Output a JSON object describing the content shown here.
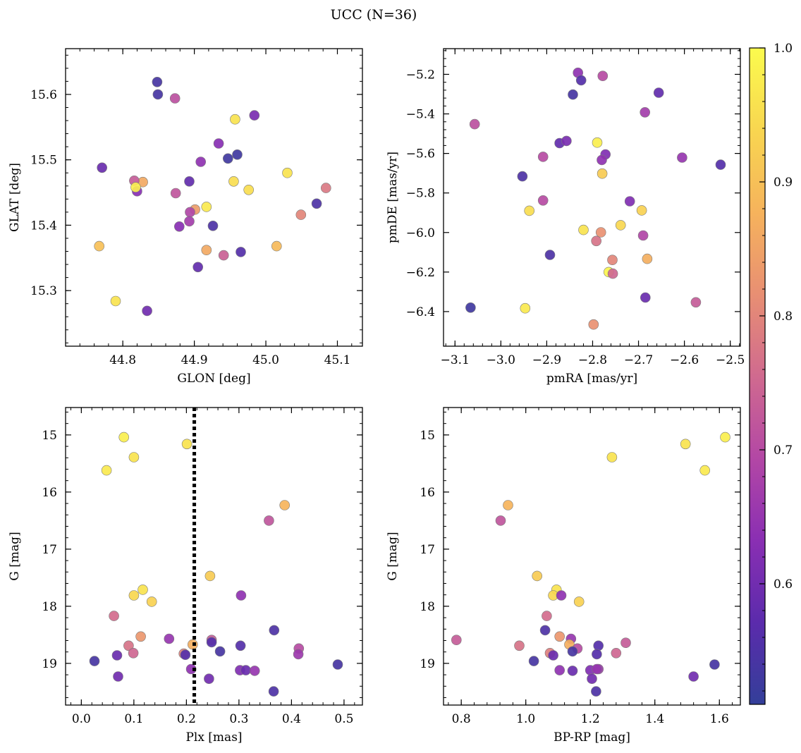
{
  "title": "UCC (N=36)",
  "colorbar": {
    "min": 0.51,
    "max": 1.0,
    "ticks": [
      0.6,
      0.7,
      0.8,
      0.9,
      1.0
    ],
    "tick_labels": [
      "0.6",
      "0.7",
      "0.8",
      "0.9",
      "1.0"
    ],
    "colormap": "plasma",
    "colors": [
      "#333f99",
      "#5b2bac",
      "#8a2fb3",
      "#b347a5",
      "#d06a8f",
      "#e88f73",
      "#f6b35c",
      "#f8d650",
      "#fbfb4e"
    ]
  },
  "chart_data": [
    {
      "type": "scatter",
      "id": "sky",
      "xlabel": "GLON [deg]",
      "ylabel": "GLAT [deg]",
      "xlim": [
        44.72,
        45.135
      ],
      "ylim": [
        15.215,
        15.67
      ],
      "xticks": [
        44.8,
        44.9,
        45.0,
        45.1
      ],
      "xtick_labels": [
        "44.8",
        "44.9",
        "45.0",
        "45.1"
      ],
      "yticks": [
        15.3,
        15.4,
        15.5,
        15.6
      ],
      "ytick_labels": [
        "15.3",
        "15.4",
        "15.5",
        "15.6"
      ],
      "x": [
        44.848,
        44.849,
        44.873,
        44.984,
        44.957,
        44.771,
        44.934,
        44.96,
        44.947,
        44.909,
        44.955,
        44.828,
        44.82,
        44.816,
        44.893,
        45.03,
        44.976,
        45.084,
        44.874,
        44.818,
        44.917,
        45.071,
        44.901,
        44.894,
        45.049,
        44.893,
        44.879,
        44.926,
        44.767,
        45.015,
        44.917,
        44.965,
        44.941,
        44.905,
        44.79,
        44.834
      ],
      "y": [
        15.619,
        15.6,
        15.594,
        15.568,
        15.562,
        15.488,
        15.525,
        15.508,
        15.502,
        15.497,
        15.467,
        15.466,
        15.452,
        15.468,
        15.467,
        15.48,
        15.454,
        15.457,
        15.449,
        15.458,
        15.428,
        15.433,
        15.424,
        15.42,
        15.416,
        15.406,
        15.398,
        15.399,
        15.368,
        15.368,
        15.362,
        15.359,
        15.354,
        15.336,
        15.284,
        15.269
      ],
      "c": [
        0.54,
        0.54,
        0.71,
        0.61,
        0.96,
        0.59,
        0.63,
        0.53,
        0.53,
        0.64,
        0.95,
        0.86,
        0.63,
        0.73,
        0.58,
        0.96,
        0.95,
        0.78,
        0.72,
        0.98,
        0.97,
        0.55,
        0.84,
        0.69,
        0.8,
        0.67,
        0.63,
        0.55,
        0.9,
        0.89,
        0.86,
        0.56,
        0.74,
        0.58,
        0.96,
        0.6
      ]
    },
    {
      "type": "scatter",
      "id": "pm",
      "xlabel": "pmRA [mas/yr]",
      "ylabel": "pmDE [mas/yr]",
      "xlim": [
        -3.125,
        -2.478
      ],
      "ylim": [
        -6.575,
        -5.07
      ],
      "xticks": [
        -3.1,
        -3.0,
        -2.9,
        -2.8,
        -2.7,
        -2.6,
        -2.5
      ],
      "xtick_labels": [
        "−3.1",
        "−3.0",
        "−2.9",
        "−2.8",
        "−2.7",
        "−2.6",
        "−2.5"
      ],
      "yticks": [
        -5.2,
        -5.4,
        -5.6,
        -5.8,
        -6.0,
        -6.2,
        -6.4
      ],
      "ytick_labels": [
        "−5.2",
        "−5.4",
        "−5.6",
        "−5.8",
        "−6.0",
        "−6.2",
        "−6.4"
      ],
      "x": [
        -2.832,
        -2.778,
        -2.825,
        -2.843,
        -2.656,
        -3.057,
        -2.686,
        -2.872,
        -2.857,
        -2.79,
        -2.772,
        -2.78,
        -2.908,
        -2.779,
        -2.953,
        -2.605,
        -2.521,
        -2.719,
        -2.908,
        -2.938,
        -2.693,
        -2.82,
        -2.739,
        -2.782,
        -2.69,
        -2.792,
        -2.757,
        -2.681,
        -2.765,
        -2.756,
        -2.893,
        -2.685,
        -2.575,
        -3.066,
        -2.947,
        -2.798
      ],
      "y": [
        -5.192,
        -5.208,
        -5.23,
        -5.302,
        -5.293,
        -5.452,
        -5.392,
        -5.548,
        -5.537,
        -5.545,
        -5.605,
        -5.633,
        -5.617,
        -5.702,
        -5.716,
        -5.621,
        -5.657,
        -5.842,
        -5.838,
        -5.89,
        -5.888,
        -5.987,
        -5.963,
        -5.999,
        -6.015,
        -6.043,
        -6.139,
        -6.133,
        -6.2,
        -6.208,
        -6.113,
        -6.329,
        -6.353,
        -6.38,
        -6.383,
        -6.465
      ],
      "c": [
        0.64,
        0.7,
        0.56,
        0.54,
        0.58,
        0.71,
        0.67,
        0.58,
        0.61,
        0.98,
        0.62,
        0.64,
        0.7,
        0.92,
        0.55,
        0.65,
        0.56,
        0.62,
        0.7,
        0.95,
        0.93,
        0.96,
        0.94,
        0.82,
        0.69,
        0.77,
        0.8,
        0.87,
        0.99,
        0.75,
        0.55,
        0.59,
        0.73,
        0.53,
        0.97,
        0.82
      ]
    },
    {
      "type": "scatter",
      "id": "plx",
      "xlabel": "Plx [mas]",
      "ylabel": "G [mag]",
      "xlim": [
        -0.03,
        0.535
      ],
      "ylim": [
        19.73,
        14.52
      ],
      "y_inverted": true,
      "xticks": [
        0.0,
        0.1,
        0.2,
        0.3,
        0.4,
        0.5
      ],
      "xtick_labels": [
        "0.0",
        "0.1",
        "0.2",
        "0.3",
        "0.4",
        "0.5"
      ],
      "yticks": [
        15,
        16,
        17,
        18,
        19
      ],
      "ytick_labels": [
        "15",
        "16",
        "17",
        "18",
        "19"
      ],
      "vline": {
        "x": 0.215,
        "style": "dotted"
      },
      "x": [
        0.081,
        0.201,
        0.1,
        0.048,
        0.387,
        0.357,
        0.245,
        0.117,
        0.1,
        0.134,
        0.304,
        0.062,
        0.367,
        0.113,
        0.167,
        0.248,
        0.248,
        0.09,
        0.212,
        0.303,
        0.414,
        0.264,
        0.099,
        0.068,
        0.413,
        0.195,
        0.198,
        0.025,
        0.488,
        0.209,
        0.302,
        0.313,
        0.33,
        0.07,
        0.243,
        0.366
      ],
      "y": [
        15.04,
        15.16,
        15.39,
        15.62,
        16.23,
        16.5,
        17.47,
        17.71,
        17.81,
        17.92,
        17.81,
        18.17,
        18.42,
        18.53,
        18.57,
        18.59,
        18.63,
        18.69,
        18.67,
        18.69,
        18.74,
        18.79,
        18.82,
        18.86,
        18.84,
        18.83,
        18.85,
        18.96,
        19.02,
        19.1,
        19.12,
        19.12,
        19.13,
        19.23,
        19.27,
        19.49
      ],
      "c": [
        0.98,
        0.96,
        0.96,
        0.97,
        0.88,
        0.72,
        0.92,
        0.96,
        0.94,
        0.93,
        0.64,
        0.76,
        0.55,
        0.83,
        0.65,
        0.73,
        0.56,
        0.77,
        0.87,
        0.56,
        0.7,
        0.54,
        0.75,
        0.59,
        0.66,
        0.79,
        0.56,
        0.54,
        0.54,
        0.64,
        0.62,
        0.59,
        0.65,
        0.6,
        0.6,
        0.55
      ]
    },
    {
      "type": "scatter",
      "id": "cmd",
      "xlabel": "BP-RP [mag]",
      "ylabel": "G [mag]",
      "xlim": [
        0.745,
        1.665
      ],
      "ylim": [
        19.73,
        14.52
      ],
      "y_inverted": true,
      "xticks": [
        0.8,
        1.0,
        1.2,
        1.4,
        1.6
      ],
      "xtick_labels": [
        "0.8",
        "1.0",
        "1.2",
        "1.4",
        "1.6"
      ],
      "yticks": [
        15,
        16,
        17,
        18,
        19
      ],
      "ytick_labels": [
        "15",
        "16",
        "17",
        "18",
        "19"
      ],
      "x": [
        1.618,
        1.495,
        1.267,
        1.555,
        0.945,
        0.922,
        1.035,
        1.095,
        1.085,
        1.165,
        1.11,
        1.065,
        1.06,
        1.105,
        1.14,
        0.785,
        1.225,
        0.98,
        1.135,
        1.31,
        1.16,
        1.145,
        1.28,
        1.075,
        1.085,
        1.22,
        1.225,
        1.025,
        1.585,
        1.105,
        1.2,
        1.145,
        1.22,
        1.52,
        1.205,
        1.218
      ],
      "y": [
        15.04,
        15.16,
        15.39,
        15.62,
        16.23,
        16.5,
        17.47,
        17.71,
        17.81,
        17.92,
        17.81,
        18.17,
        18.42,
        18.53,
        18.57,
        18.59,
        18.69,
        18.69,
        18.67,
        18.64,
        18.74,
        18.79,
        18.82,
        18.82,
        18.86,
        18.84,
        19.1,
        18.96,
        19.02,
        19.12,
        19.12,
        19.13,
        19.1,
        19.23,
        19.27,
        19.49
      ],
      "c": [
        0.98,
        0.96,
        0.96,
        0.97,
        0.88,
        0.72,
        0.92,
        0.96,
        0.94,
        0.93,
        0.64,
        0.76,
        0.55,
        0.83,
        0.65,
        0.73,
        0.56,
        0.77,
        0.87,
        0.73,
        0.7,
        0.54,
        0.75,
        0.79,
        0.59,
        0.56,
        0.66,
        0.54,
        0.54,
        0.64,
        0.62,
        0.59,
        0.65,
        0.6,
        0.6,
        0.55
      ]
    }
  ]
}
